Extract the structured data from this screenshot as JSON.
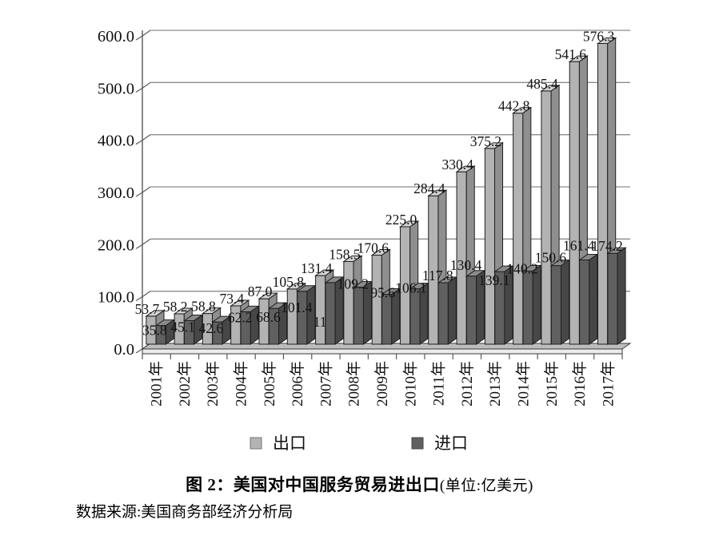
{
  "figure": {
    "title_bold": "图 2：美国对中国服务贸易进出口",
    "title_unit": "(单位:亿美元)",
    "source": "数据来源:美国商务部经济分析局"
  },
  "chart_data": {
    "type": "bar",
    "style": "3d-clustered-column",
    "title": "图 2：美国对中国服务贸易进出口",
    "unit": "亿美元",
    "categories": [
      "2001年",
      "2002年",
      "2003年",
      "2004年",
      "2005年",
      "2006年",
      "2007年",
      "2008年",
      "2009年",
      "2010年",
      "2011年",
      "2012年",
      "2013年",
      "2014年",
      "2015年",
      "2016年",
      "2017年"
    ],
    "series": [
      {
        "name": "出口",
        "color": "#b3b3b3",
        "color_top": "#d2d2d2",
        "color_side": "#8f8f8f",
        "values": [
          53.7,
          58.2,
          58.8,
          73.4,
          87.0,
          105.8,
          131.4,
          158.5,
          170.6,
          225.0,
          284.4,
          330.4,
          375.2,
          442.8,
          485.4,
          541.6,
          576.3
        ]
      },
      {
        "name": "进口",
        "color": "#606060",
        "color_top": "#8a8a8a",
        "color_side": "#474747",
        "values": [
          35.8,
          45.1,
          42.6,
          62.2,
          68.6,
          101.4,
          118.0,
          109.2,
          95.6,
          106.1,
          117.8,
          130.4,
          139.1,
          140.2,
          150.6,
          161.4,
          174.2
        ]
      }
    ],
    "ylim": [
      0,
      600
    ],
    "ytick_step": 100,
    "yticks": [
      "0.0",
      "100.0",
      "200.0",
      "300.0",
      "400.0",
      "500.0",
      "600.0"
    ],
    "grid": true,
    "data_labels": true,
    "legend_position": "bottom",
    "legend": [
      "出口",
      "进口"
    ],
    "gridline_color": "#8c8c8c",
    "axis_color": "#595959",
    "label_color": "#111111",
    "floor_top_color": "#bdbdbd",
    "floor_front_color": "#ececec"
  }
}
